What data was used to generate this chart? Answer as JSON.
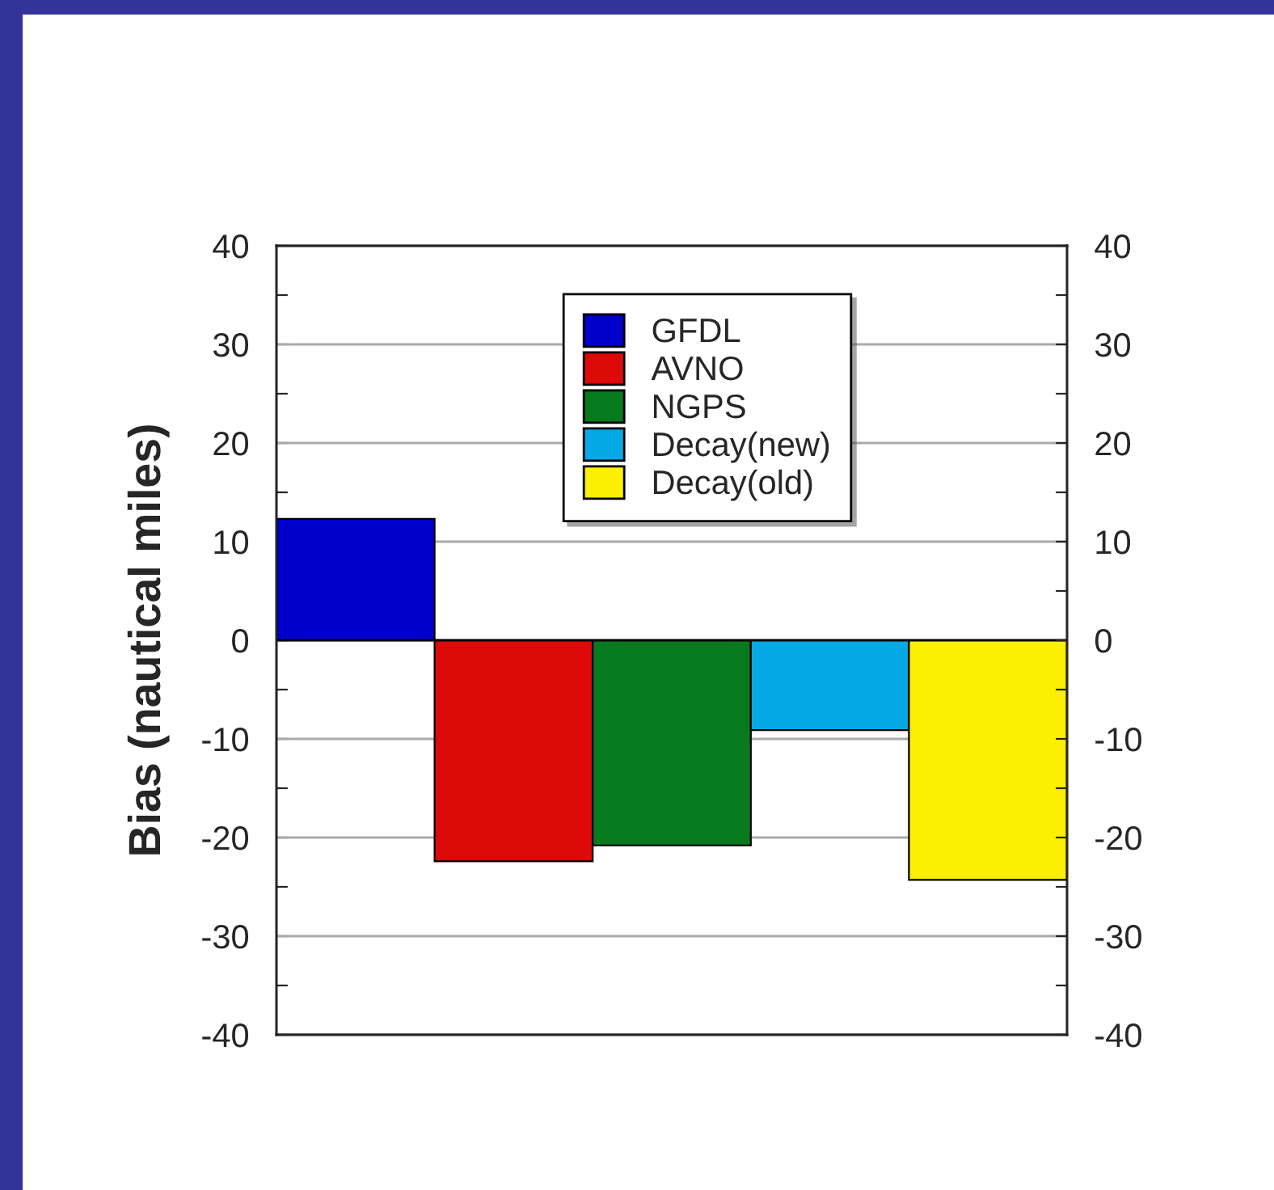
{
  "chart_data": {
    "type": "bar",
    "ylabel": "Bias (nautical miles)",
    "categories": [
      null
    ],
    "series": [
      {
        "name": "GFDL",
        "color": "#0000cc",
        "values": [
          12.3
        ]
      },
      {
        "name": "AVNO",
        "color": "#dd0a0a",
        "values": [
          -22.4
        ]
      },
      {
        "name": "NGPS",
        "color": "#087a1e",
        "values": [
          -20.8
        ]
      },
      {
        "name": "Decay(new)",
        "color": "#04a9e6",
        "values": [
          -9.1
        ]
      },
      {
        "name": "Decay(old)",
        "color": "#fbef04",
        "values": [
          -24.3
        ]
      }
    ],
    "ylim": [
      -40,
      40
    ],
    "yticks": [
      -40,
      {
        "value": -35,
        "label": null
      },
      -30,
      {
        "value": -25,
        "label": null
      },
      -20,
      {
        "value": -15,
        "label": null
      },
      -10,
      {
        "value": -5,
        "label": null
      },
      0,
      {
        "value": 5,
        "label": null
      },
      10,
      {
        "value": 15,
        "label": null
      },
      20,
      {
        "value": 25,
        "label": null
      },
      30,
      {
        "value": 35,
        "label": null
      },
      40
    ],
    "y2lim": [
      -40,
      40
    ],
    "y2ticks": [
      -40,
      {
        "value": -35,
        "label": null
      },
      -30,
      {
        "value": -25,
        "label": null
      },
      -20,
      {
        "value": -15,
        "label": null
      },
      -10,
      {
        "value": -5,
        "label": null
      },
      0,
      {
        "value": 5,
        "label": null
      },
      10,
      {
        "value": 15,
        "label": null
      },
      20,
      {
        "value": 25,
        "label": null
      },
      30,
      {
        "value": 35,
        "label": null
      },
      40
    ],
    "grid": "y",
    "legend": "top"
  }
}
